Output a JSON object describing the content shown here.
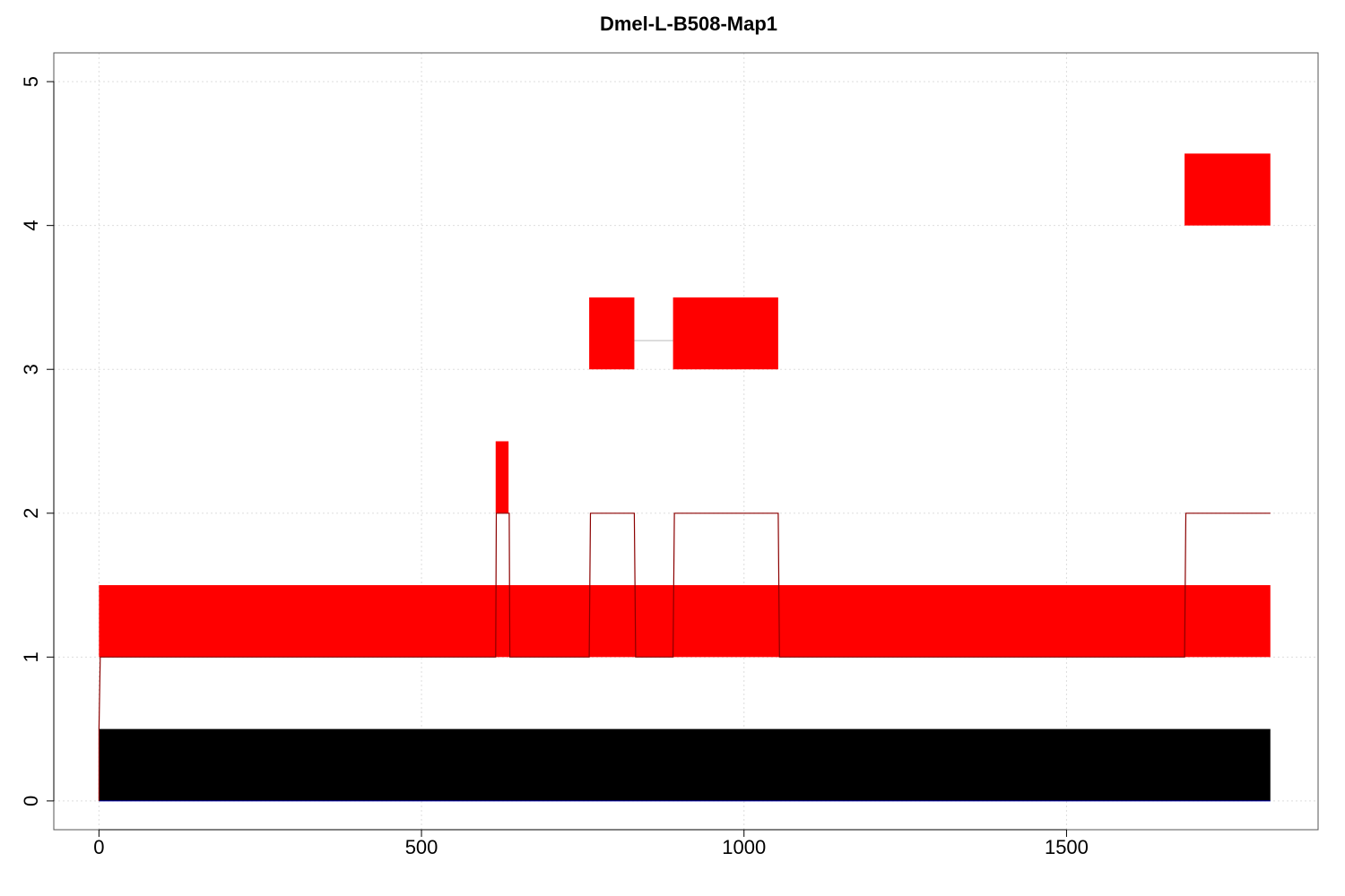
{
  "chart_data": {
    "type": "bar",
    "title": "Dmel-L-B508-Map1",
    "xlabel": "",
    "ylabel": "",
    "xlim": [
      -70,
      1890
    ],
    "ylim": [
      -0.2,
      5.2
    ],
    "x_ticks": [
      0,
      500,
      1000,
      1500
    ],
    "y_ticks": [
      0,
      1,
      2,
      3,
      4,
      5
    ],
    "grid": true,
    "colors": {
      "segment": "#ff0000",
      "base": "#000000",
      "coverage": "#8b0000",
      "connector": "#bbbbbb",
      "grid": "#dddddd"
    },
    "base_bar": {
      "x_start": 0,
      "x_end": 1816,
      "y0": 0,
      "y1": 0.5
    },
    "segments": [
      {
        "x_start": 0,
        "x_end": 1816,
        "y0": 1,
        "y1": 1.5
      },
      {
        "x_start": 615,
        "x_end": 635,
        "y0": 2,
        "y1": 2.5
      },
      {
        "x_start": 760,
        "x_end": 830,
        "y0": 3,
        "y1": 3.5
      },
      {
        "x_start": 890,
        "x_end": 1053,
        "y0": 3,
        "y1": 3.5
      },
      {
        "x_start": 1683,
        "x_end": 1816,
        "y0": 4,
        "y1": 4.5
      }
    ],
    "connectors": [
      {
        "x_start": 830,
        "x_end": 890,
        "y": 3.2
      }
    ],
    "coverage_line": {
      "x": [
        0,
        0,
        2,
        615,
        616,
        636,
        637,
        760,
        762,
        830,
        832,
        890,
        892,
        1053,
        1055,
        1683,
        1685,
        1816
      ],
      "y": [
        0,
        0.5,
        1,
        1,
        2,
        2,
        1,
        1,
        2,
        2,
        1,
        1,
        2,
        2,
        1,
        1,
        2,
        2
      ]
    }
  }
}
